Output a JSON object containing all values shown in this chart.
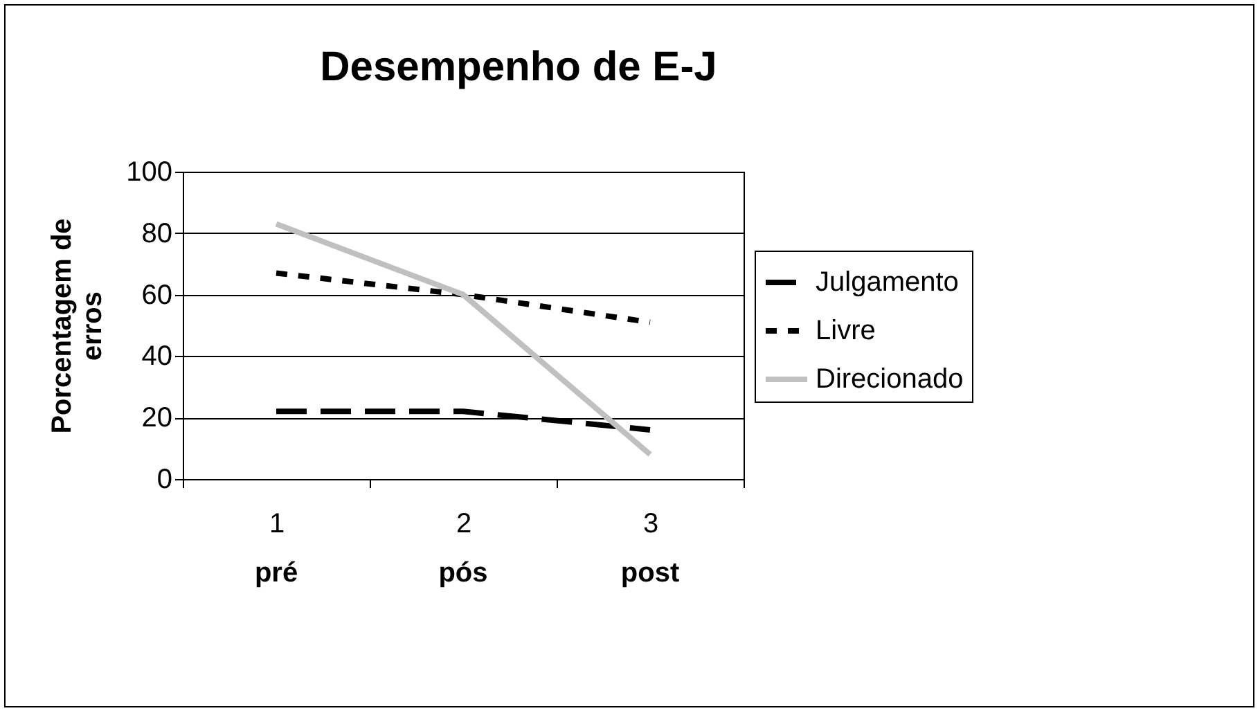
{
  "chart_data": {
    "type": "line",
    "title": "Desempenho de E-J",
    "ylabel": "Porcentagem de erros",
    "categories": [
      "1",
      "2",
      "3"
    ],
    "series": [
      {
        "name": "Julgamento",
        "color": "#000000",
        "line_style": "dashed",
        "values": [
          22,
          22,
          16
        ]
      },
      {
        "name": "Livre",
        "color": "#000000",
        "line_style": "dotted",
        "values": [
          67,
          60,
          51
        ]
      },
      {
        "name": "Direcionado",
        "color": "#c0c0c0",
        "line_style": "solid",
        "values": [
          83,
          60,
          8
        ]
      }
    ],
    "annotations": [
      "pré",
      "pós",
      "post"
    ],
    "ylim": [
      0,
      100
    ],
    "yticks": [
      0,
      20,
      40,
      60,
      80,
      100
    ],
    "grid": "y",
    "legend": "right",
    "marker": "none"
  }
}
